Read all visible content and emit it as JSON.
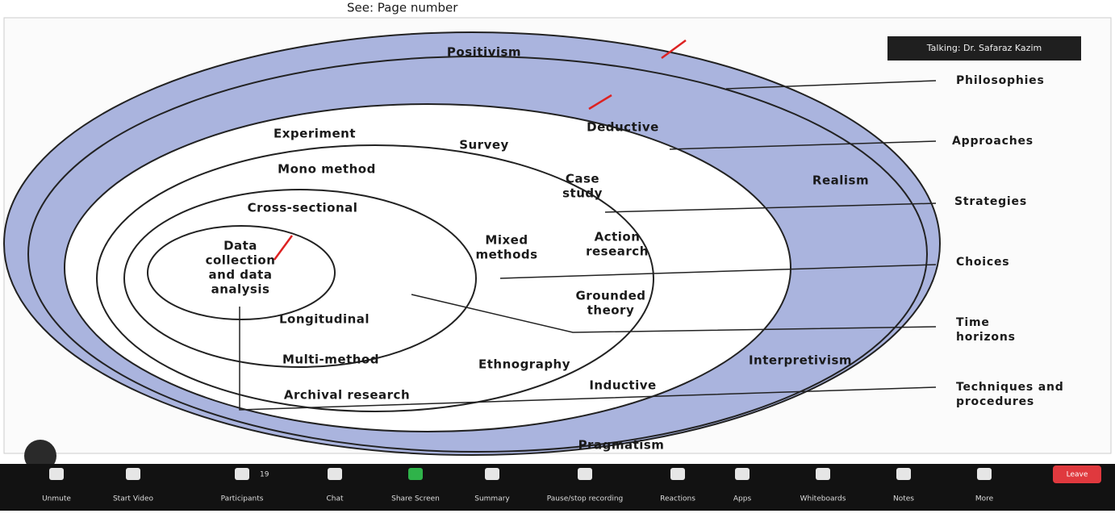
{
  "header": {
    "note": "See: Page number"
  },
  "speaker": "Talking: Dr. Safaraz Kazim",
  "diagram": {
    "labels": [
      {
        "lines": [
          "Positivism"
        ],
        "bold": true
      },
      {
        "lines": [
          "Deductive"
        ],
        "bold": true
      },
      {
        "lines": [
          "Realism"
        ],
        "bold": true
      },
      {
        "lines": [
          "Interpretivism"
        ],
        "bold": true
      },
      {
        "lines": [
          "Inductive"
        ],
        "bold": true
      },
      {
        "lines": [
          "Pragmatism"
        ],
        "bold": true
      },
      {
        "lines": [
          "Experiment"
        ]
      },
      {
        "lines": [
          "Survey"
        ]
      },
      {
        "lines": [
          "Case",
          "study"
        ]
      },
      {
        "lines": [
          "Action",
          "research"
        ]
      },
      {
        "lines": [
          "Grounded",
          "theory"
        ]
      },
      {
        "lines": [
          "Ethnography"
        ]
      },
      {
        "lines": [
          "Archival research"
        ]
      },
      {
        "lines": [
          "Multi-method"
        ]
      },
      {
        "lines": [
          "Longitudinal"
        ]
      },
      {
        "lines": [
          "Mono method"
        ]
      },
      {
        "lines": [
          "Cross-sectional"
        ]
      },
      {
        "lines": [
          "Mixed",
          "methods"
        ]
      },
      {
        "lines": [
          "Data",
          "collection",
          "and data",
          "analysis"
        ]
      }
    ],
    "layers": [
      {
        "lines": [
          "Philosophies"
        ]
      },
      {
        "lines": [
          "Approaches"
        ]
      },
      {
        "lines": [
          "Strategies"
        ]
      },
      {
        "lines": [
          "Choices"
        ]
      },
      {
        "lines": [
          "Time",
          "horizons"
        ]
      },
      {
        "lines": [
          "Techniques and",
          "procedures"
        ]
      }
    ]
  },
  "toolbar": {
    "participants_count": "19",
    "items": [
      "Unmute",
      "Start Video",
      "Participants",
      "Chat",
      "Share Screen",
      "Summary",
      "Pause/stop recording",
      "Reactions",
      "Apps",
      "Whiteboards",
      "Notes",
      "More"
    ],
    "leave": "Leave"
  }
}
